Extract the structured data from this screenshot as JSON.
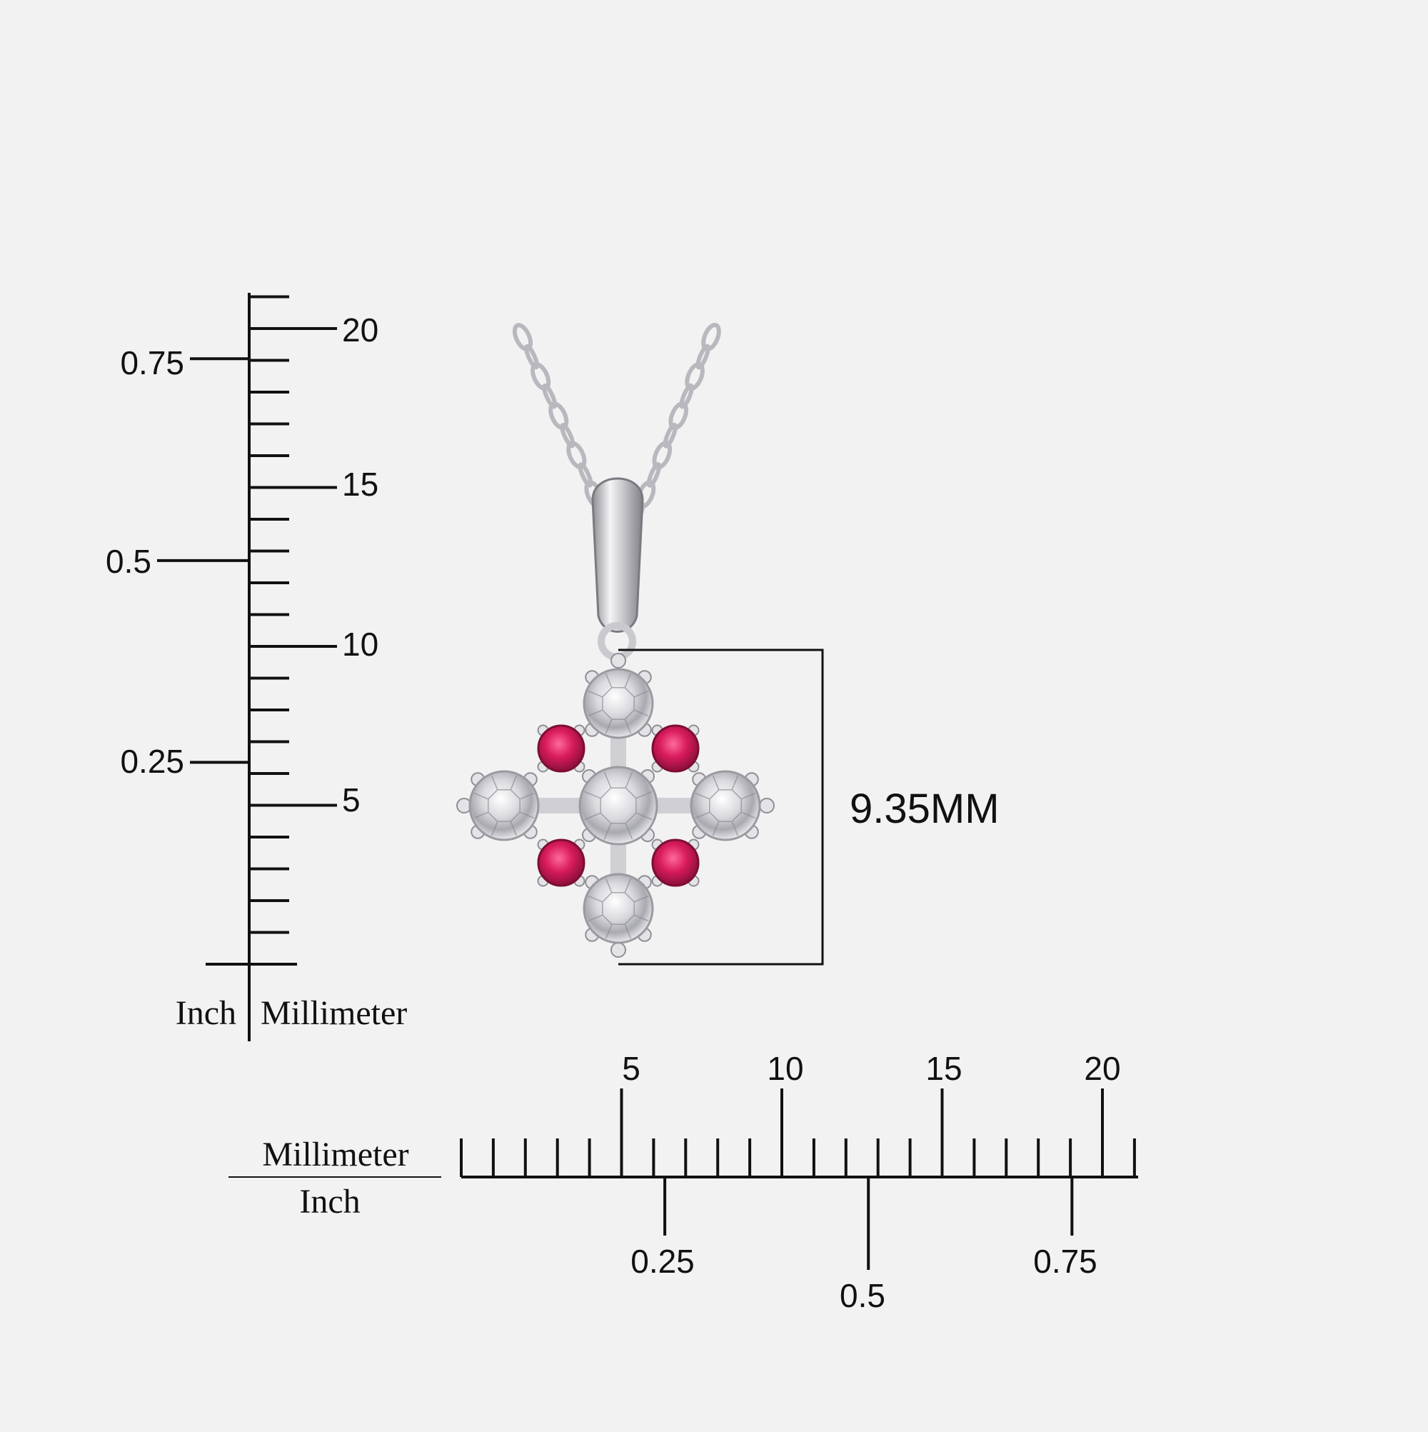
{
  "vertical_ruler": {
    "mm_labels": [
      "20",
      "15",
      "10",
      "5"
    ],
    "inch_labels": [
      "0.75",
      "0.5",
      "0.25"
    ],
    "unit_left": "Inch",
    "unit_right": "Millimeter"
  },
  "horizontal_ruler": {
    "mm_labels": [
      "5",
      "10",
      "15",
      "20"
    ],
    "inch_labels": [
      "0.25",
      "0.5",
      "0.75"
    ],
    "unit_top": "Millimeter",
    "unit_bottom": "Inch"
  },
  "dimension": {
    "label": "9.35MM"
  },
  "colors": {
    "background": "#f2f2f2",
    "ink": "#111111",
    "metal": "#d9d9dc",
    "metal_dark": "#9a9aa0",
    "diamond": "#e6e6ea",
    "ruby": "#d81b5c"
  }
}
